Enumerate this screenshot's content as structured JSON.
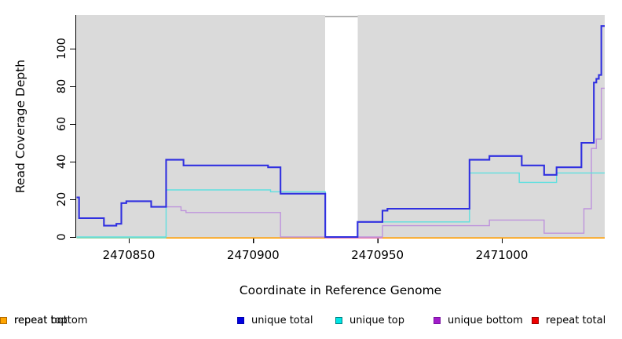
{
  "chart_data": {
    "type": "line",
    "subtype": "step-coverage-plot",
    "title": "",
    "xlabel": "Coordinate in Reference Genome",
    "ylabel": "Read Coverage Depth",
    "x_ticks": [
      2470850,
      2470900,
      2470950,
      2471000
    ],
    "y_ticks": [
      0,
      20,
      40,
      60,
      80,
      100
    ],
    "x_range": [
      2470829,
      2471041
    ],
    "y_range": [
      0,
      118
    ],
    "grid": "off",
    "plot_bg": "#dadada",
    "gap_region": {
      "x0": 2470929,
      "x1": 2470942,
      "fill": "#ffffff",
      "top_line_color": "#999999"
    },
    "legend_position": "bottom",
    "legend": [
      {
        "label": "unique total",
        "color": "#0000e0",
        "border": "#0000b0"
      },
      {
        "label": "unique top",
        "color": "#00e5e5",
        "border": "#007f7f"
      },
      {
        "label": "unique bottom",
        "color": "#a21ccb",
        "border": "#7a12a0"
      },
      {
        "label": "repeat total",
        "color": "#ee0000",
        "border": "#990000"
      },
      {
        "label": "repeat top",
        "color": "#ffff00",
        "border": "#7f7f00"
      },
      {
        "label": "repeat bottom",
        "color": "#ffa500",
        "border": "#b36b00"
      }
    ],
    "series": [
      {
        "name": "repeat total",
        "line_color": "#dd2222",
        "width": 1.5,
        "points": [
          [
            2470829,
            0
          ]
        ]
      },
      {
        "name": "repeat top",
        "line_color": "#f0e000",
        "width": 1.5,
        "points": [
          [
            2470829,
            0
          ]
        ]
      },
      {
        "name": "repeat bottom",
        "line_color": "#ff9d00",
        "width": 1.6,
        "points": [
          [
            2470829,
            0
          ]
        ]
      },
      {
        "name": "unique bottom",
        "line_color": "#be93dc",
        "width": 1.4,
        "points": [
          [
            2470829,
            21
          ],
          [
            2470830,
            10
          ],
          [
            2470840,
            6
          ],
          [
            2470845,
            7
          ],
          [
            2470847,
            18
          ],
          [
            2470849,
            19
          ],
          [
            2470859,
            16
          ],
          [
            2470865,
            16
          ],
          [
            2470871,
            14
          ],
          [
            2470873,
            13
          ],
          [
            2470911,
            0
          ],
          [
            2470952,
            6
          ],
          [
            2470995,
            9
          ],
          [
            2471017,
            2
          ],
          [
            2471033,
            15
          ],
          [
            2471036,
            47
          ],
          [
            2471038,
            52
          ],
          [
            2471040,
            79
          ]
        ]
      },
      {
        "name": "unique top",
        "line_color": "#5fdfdf",
        "width": 1.4,
        "points": [
          [
            2470829,
            0
          ],
          [
            2470865,
            25
          ],
          [
            2470907,
            24
          ],
          [
            2470929,
            0
          ],
          [
            2470942,
            8
          ],
          [
            2470987,
            34
          ],
          [
            2471007,
            29
          ],
          [
            2471022,
            34
          ]
        ]
      },
      {
        "name": "unique total",
        "line_color": "#3030e0",
        "width": 2.1,
        "points": [
          [
            2470829,
            21
          ],
          [
            2470830,
            10
          ],
          [
            2470840,
            6
          ],
          [
            2470845,
            7
          ],
          [
            2470847,
            18
          ],
          [
            2470849,
            19
          ],
          [
            2470859,
            16
          ],
          [
            2470865,
            41
          ],
          [
            2470872,
            38
          ],
          [
            2470906,
            37
          ],
          [
            2470911,
            23
          ],
          [
            2470929,
            0
          ],
          [
            2470942,
            8
          ],
          [
            2470952,
            14
          ],
          [
            2470954,
            15
          ],
          [
            2470987,
            41
          ],
          [
            2470995,
            43
          ],
          [
            2471008,
            38
          ],
          [
            2471017,
            33
          ],
          [
            2471022,
            37
          ],
          [
            2471032,
            50
          ],
          [
            2471037,
            82
          ],
          [
            2471038,
            84
          ],
          [
            2471039,
            86
          ],
          [
            2471040,
            112
          ]
        ]
      }
    ],
    "baseline_overlays": [
      {
        "x0": 2470829,
        "x1": 2470865,
        "color": "#96d5a5"
      },
      {
        "x0": 2470929,
        "x1": 2470952,
        "color": "#e97ba8"
      }
    ]
  }
}
